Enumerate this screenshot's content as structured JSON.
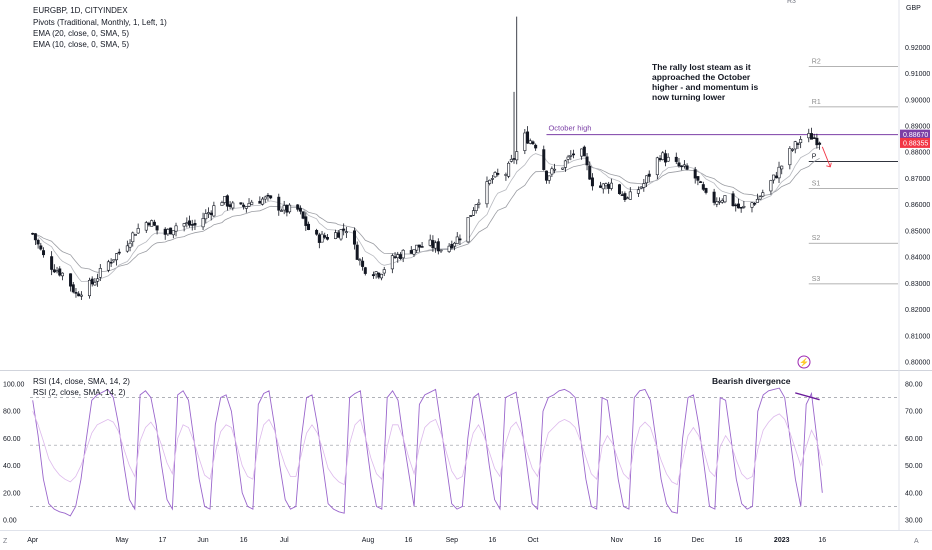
{
  "legend": {
    "symbol": "EURGBP, 1D, CITYINDEX",
    "pivots": "Pivots (Traditional, Monthly, 1, Left, 1)",
    "ema20": "EMA (20, close, 0, SMA, 5)",
    "ema10": "EMA (10, close, 0, SMA, 5)"
  },
  "rsi_legend": {
    "rsi14": "RSI (14, close, SMA, 14, 2)",
    "rsi2": "RSI (2, close, SMA, 14, 2)"
  },
  "annotations": {
    "commentary_lines": [
      "The rally lost steam as it",
      "approached the October",
      "higher - and momentum is",
      "now turning lower"
    ],
    "october_high": "October high",
    "divergence": "Bearish divergence"
  },
  "corner_labels": {
    "bottom_left": "Z",
    "bottom_right": "A",
    "top_clip": "R3"
  },
  "colors": {
    "candle": "#131722",
    "ema": "#9b9da3",
    "pivot": "#9a9a9a",
    "october_high_line": "#7b3fa6",
    "price_badge_purple": "#7b3fa6",
    "price_badge_red": "#f23645",
    "rsi14": "#ddb9ec",
    "rsi2": "#9a66cc",
    "arrow": "#f23645"
  },
  "chart_data": [
    {
      "type": "candlestick",
      "symbol": "EURGBP",
      "timeframe": "1D",
      "currency_label": "GBP",
      "ylim": [
        0.8,
        0.935
      ],
      "y_ticks": [
        "0.92000",
        "0.91000",
        "0.90000",
        "0.89000",
        "0.88000",
        "0.87000",
        "0.86000",
        "0.85000",
        "0.84000",
        "0.83000",
        "0.82000",
        "0.81000",
        "0.80000"
      ],
      "x_ticks": [
        "Apr",
        "May",
        "17",
        "Jun",
        "16",
        "Jul",
        "Aug",
        "16",
        "Sep",
        "16",
        "Oct",
        "Nov",
        "16",
        "Dec",
        "16",
        "2023",
        "16"
      ],
      "x_tick_days": [
        0,
        33,
        48,
        63,
        78,
        93,
        124,
        139,
        155,
        170,
        185,
        216,
        231,
        246,
        261,
        277,
        292
      ],
      "x_range_days": [
        -1,
        320
      ],
      "price_labels": [
        "0.88670",
        "0.88355"
      ],
      "price_label_values": [
        0.8867,
        0.88355
      ],
      "pivots": [
        {
          "label": "R2",
          "value": 0.9127
        },
        {
          "label": "R1",
          "value": 0.8973
        },
        {
          "label": "P",
          "value": 0.8765
        },
        {
          "label": "S1",
          "value": 0.8662
        },
        {
          "label": "S2",
          "value": 0.8453
        },
        {
          "label": "S3",
          "value": 0.8298
        }
      ],
      "pivot_start_day": 287,
      "october_high": {
        "value": 0.8867,
        "start_day": 190
      },
      "anchors": [
        [
          0,
          0.849
        ],
        [
          5,
          0.838
        ],
        [
          12,
          0.833
        ],
        [
          16,
          0.826
        ],
        [
          22,
          0.83
        ],
        [
          28,
          0.838
        ],
        [
          33,
          0.843
        ],
        [
          38,
          0.85
        ],
        [
          43,
          0.854
        ],
        [
          48,
          0.848
        ],
        [
          54,
          0.853
        ],
        [
          60,
          0.852
        ],
        [
          66,
          0.858
        ],
        [
          70,
          0.862
        ],
        [
          76,
          0.858
        ],
        [
          82,
          0.862
        ],
        [
          87,
          0.862
        ],
        [
          93,
          0.858
        ],
        [
          98,
          0.858
        ],
        [
          104,
          0.847
        ],
        [
          110,
          0.848
        ],
        [
          116,
          0.851
        ],
        [
          122,
          0.836
        ],
        [
          128,
          0.834
        ],
        [
          134,
          0.84
        ],
        [
          140,
          0.843
        ],
        [
          146,
          0.845
        ],
        [
          152,
          0.843
        ],
        [
          158,
          0.848
        ],
        [
          164,
          0.861
        ],
        [
          170,
          0.87
        ],
        [
          175,
          0.872
        ],
        [
          182,
          0.886
        ],
        [
          186,
          0.883
        ],
        [
          190,
          0.871
        ],
        [
          196,
          0.875
        ],
        [
          202,
          0.882
        ],
        [
          208,
          0.866
        ],
        [
          214,
          0.868
        ],
        [
          220,
          0.862
        ],
        [
          226,
          0.868
        ],
        [
          232,
          0.879
        ],
        [
          238,
          0.875
        ],
        [
          244,
          0.872
        ],
        [
          250,
          0.861
        ],
        [
          256,
          0.863
        ],
        [
          262,
          0.858
        ],
        [
          268,
          0.862
        ],
        [
          274,
          0.87
        ],
        [
          280,
          0.88
        ],
        [
          284,
          0.885
        ],
        [
          288,
          0.886
        ],
        [
          292,
          0.8836
        ]
      ],
      "extremes": [
        {
          "day": 180,
          "high": 0.9317
        },
        {
          "day": 178,
          "high": 0.903
        },
        {
          "day": 16,
          "low": 0.8245
        },
        {
          "day": 127,
          "low": 0.8318
        }
      ]
    },
    {
      "type": "line",
      "panel": "RSI",
      "ylim": [
        0,
        100
      ],
      "y_ticks_left": [
        "100.00",
        "80.00",
        "60.00",
        "40.00",
        "20.00",
        "0.00"
      ],
      "y_ticks_right": [
        "80.00",
        "70.00",
        "60.00",
        "50.00",
        "40.00",
        "30.00"
      ],
      "right_axis_range": [
        30,
        80
      ],
      "reference_levels": [
        90,
        55,
        10
      ],
      "series": [
        {
          "values": [
            88,
            62,
            30,
            12,
            8,
            6,
            5,
            3,
            10,
            30,
            60,
            88,
            92,
            94,
            96,
            90,
            70,
            40,
            15,
            8,
            92,
            95,
            90,
            70,
            40,
            15,
            8,
            92,
            95,
            88,
            60,
            30,
            10,
            8,
            70,
            90,
            92,
            80,
            50,
            20,
            10,
            8,
            85,
            93,
            95,
            70,
            40,
            15,
            8,
            10,
            60,
            90,
            92,
            70,
            40,
            12,
            8,
            6,
            5,
            90,
            93,
            95,
            60,
            30,
            10,
            8,
            90,
            95,
            88,
            60,
            35,
            10,
            85,
            92,
            94,
            96,
            70,
            40,
            12,
            8,
            10,
            60,
            90,
            93,
            70,
            40,
            15,
            8,
            90,
            92,
            94,
            70,
            40,
            12,
            8,
            80,
            90,
            92,
            95,
            96,
            94,
            90,
            60,
            30,
            10,
            8,
            90,
            88,
            60,
            30,
            10,
            8,
            90,
            95,
            96,
            88,
            60,
            30,
            12,
            6,
            5,
            60,
            90,
            92,
            70,
            40,
            10,
            8,
            90,
            88,
            60,
            30,
            12,
            8,
            10,
            80,
            92,
            95,
            96,
            97,
            90,
            60,
            30,
            10,
            85,
            93,
            60,
            20
          ]
        },
        {
          "values": [
            80,
            70,
            58,
            45,
            38,
            33,
            30,
            28,
            32,
            40,
            52,
            64,
            70,
            72,
            74,
            72,
            65,
            52,
            40,
            32,
            58,
            68,
            72,
            66,
            55,
            42,
            34,
            60,
            70,
            68,
            58,
            45,
            33,
            30,
            50,
            65,
            70,
            68,
            55,
            40,
            32,
            30,
            55,
            70,
            74,
            66,
            52,
            40,
            32,
            32,
            48,
            64,
            70,
            64,
            52,
            38,
            32,
            28,
            26,
            56,
            70,
            74,
            60,
            45,
            34,
            30,
            54,
            70,
            70,
            60,
            46,
            34,
            54,
            68,
            72,
            74,
            64,
            50,
            36,
            30,
            32,
            48,
            64,
            70,
            62,
            50,
            38,
            32,
            56,
            68,
            72,
            64,
            50,
            38,
            32,
            50,
            64,
            68,
            72,
            74,
            72,
            68,
            58,
            46,
            34,
            30,
            54,
            62,
            56,
            44,
            34,
            30,
            54,
            68,
            72,
            68,
            56,
            44,
            34,
            28,
            26,
            44,
            62,
            68,
            62,
            50,
            36,
            32,
            54,
            62,
            56,
            44,
            34,
            30,
            32,
            52,
            66,
            72,
            76,
            78,
            74,
            64,
            52,
            40,
            54,
            66,
            58,
            40
          ]
        }
      ],
      "divergence_marker": {
        "from_value": 92,
        "to_value": 87
      }
    }
  ]
}
